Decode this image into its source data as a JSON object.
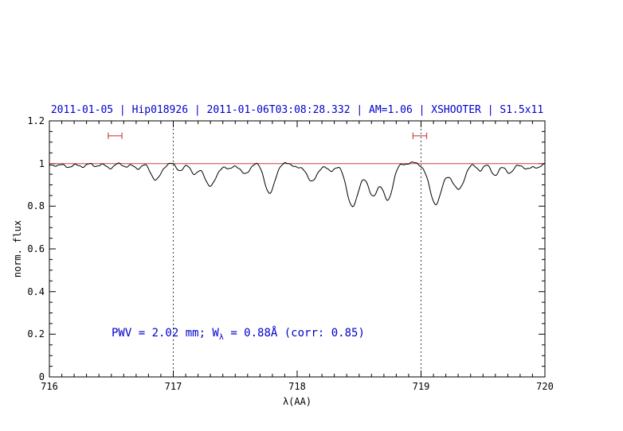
{
  "chart_data": {
    "type": "line",
    "title": "2011-01-05 | Hip018926 | 2011-01-06T03:08:28.332 | AM=1.06 | XSHOOTER | S1.5x11",
    "xlabel": "λ(AA)",
    "ylabel": "norm. flux",
    "xlim": [
      716,
      720
    ],
    "ylim": [
      0,
      1.2
    ],
    "x_ticks": [
      716,
      717,
      718,
      719,
      720
    ],
    "x_tick_labels": [
      "716",
      "717",
      "718",
      "719",
      "720"
    ],
    "y_ticks": [
      0,
      0.2,
      0.4,
      0.6,
      0.8,
      1,
      1.2
    ],
    "y_tick_labels": [
      "0",
      "0.2",
      "0.4",
      "0.6",
      "0.8",
      "1",
      "1.2"
    ],
    "x_minor_step": 0.1,
    "y_minor_step": 0.05,
    "grid": false,
    "dotted_vlines": [
      717,
      719
    ],
    "continuum_level": 1.0,
    "continuum_color": "#cc4444",
    "spectrum_color": "#000000",
    "title_color": "#0000cc",
    "annotation": {
      "pre": "PWV = 2.02 mm; W",
      "sub": "λ",
      "post": " = 0.88Å (corr: 0.85)",
      "color": "#0000cc"
    },
    "markers": [
      {
        "center": 716.53,
        "half_width": 0.055,
        "flux": 1.13,
        "color": "#cc4444"
      },
      {
        "center": 718.99,
        "half_width": 0.055,
        "flux": 1.13,
        "color": "#cc4444"
      }
    ],
    "absorption_lines": [
      [
        716.07,
        0.012,
        0.025
      ],
      [
        716.16,
        0.018,
        0.03
      ],
      [
        716.28,
        0.014,
        0.025
      ],
      [
        716.38,
        0.012,
        0.03
      ],
      [
        716.5,
        0.02,
        0.03
      ],
      [
        716.62,
        0.014,
        0.025
      ],
      [
        716.72,
        0.022,
        0.03
      ],
      [
        716.86,
        0.075,
        0.04
      ],
      [
        717.05,
        0.03,
        0.03
      ],
      [
        717.17,
        0.045,
        0.03
      ],
      [
        717.3,
        0.1,
        0.05
      ],
      [
        717.45,
        0.03,
        0.025
      ],
      [
        717.58,
        0.05,
        0.035
      ],
      [
        717.78,
        0.14,
        0.04
      ],
      [
        718.02,
        0.02,
        0.03
      ],
      [
        718.12,
        0.085,
        0.04
      ],
      [
        718.27,
        0.04,
        0.03
      ],
      [
        718.45,
        0.2,
        0.05
      ],
      [
        718.61,
        0.15,
        0.04
      ],
      [
        718.73,
        0.175,
        0.04
      ],
      [
        719.12,
        0.19,
        0.05
      ],
      [
        719.3,
        0.12,
        0.05
      ],
      [
        719.48,
        0.03,
        0.025
      ],
      [
        719.6,
        0.06,
        0.03
      ],
      [
        719.72,
        0.045,
        0.03
      ],
      [
        719.85,
        0.03,
        0.03
      ],
      [
        719.95,
        0.02,
        0.025
      ]
    ],
    "noise": {
      "amp1": 0.004,
      "freq1": 55,
      "amp2": 0.003,
      "freq2": 29,
      "amp3": 0.002,
      "freq3": 141
    },
    "sample_step": 0.008
  }
}
